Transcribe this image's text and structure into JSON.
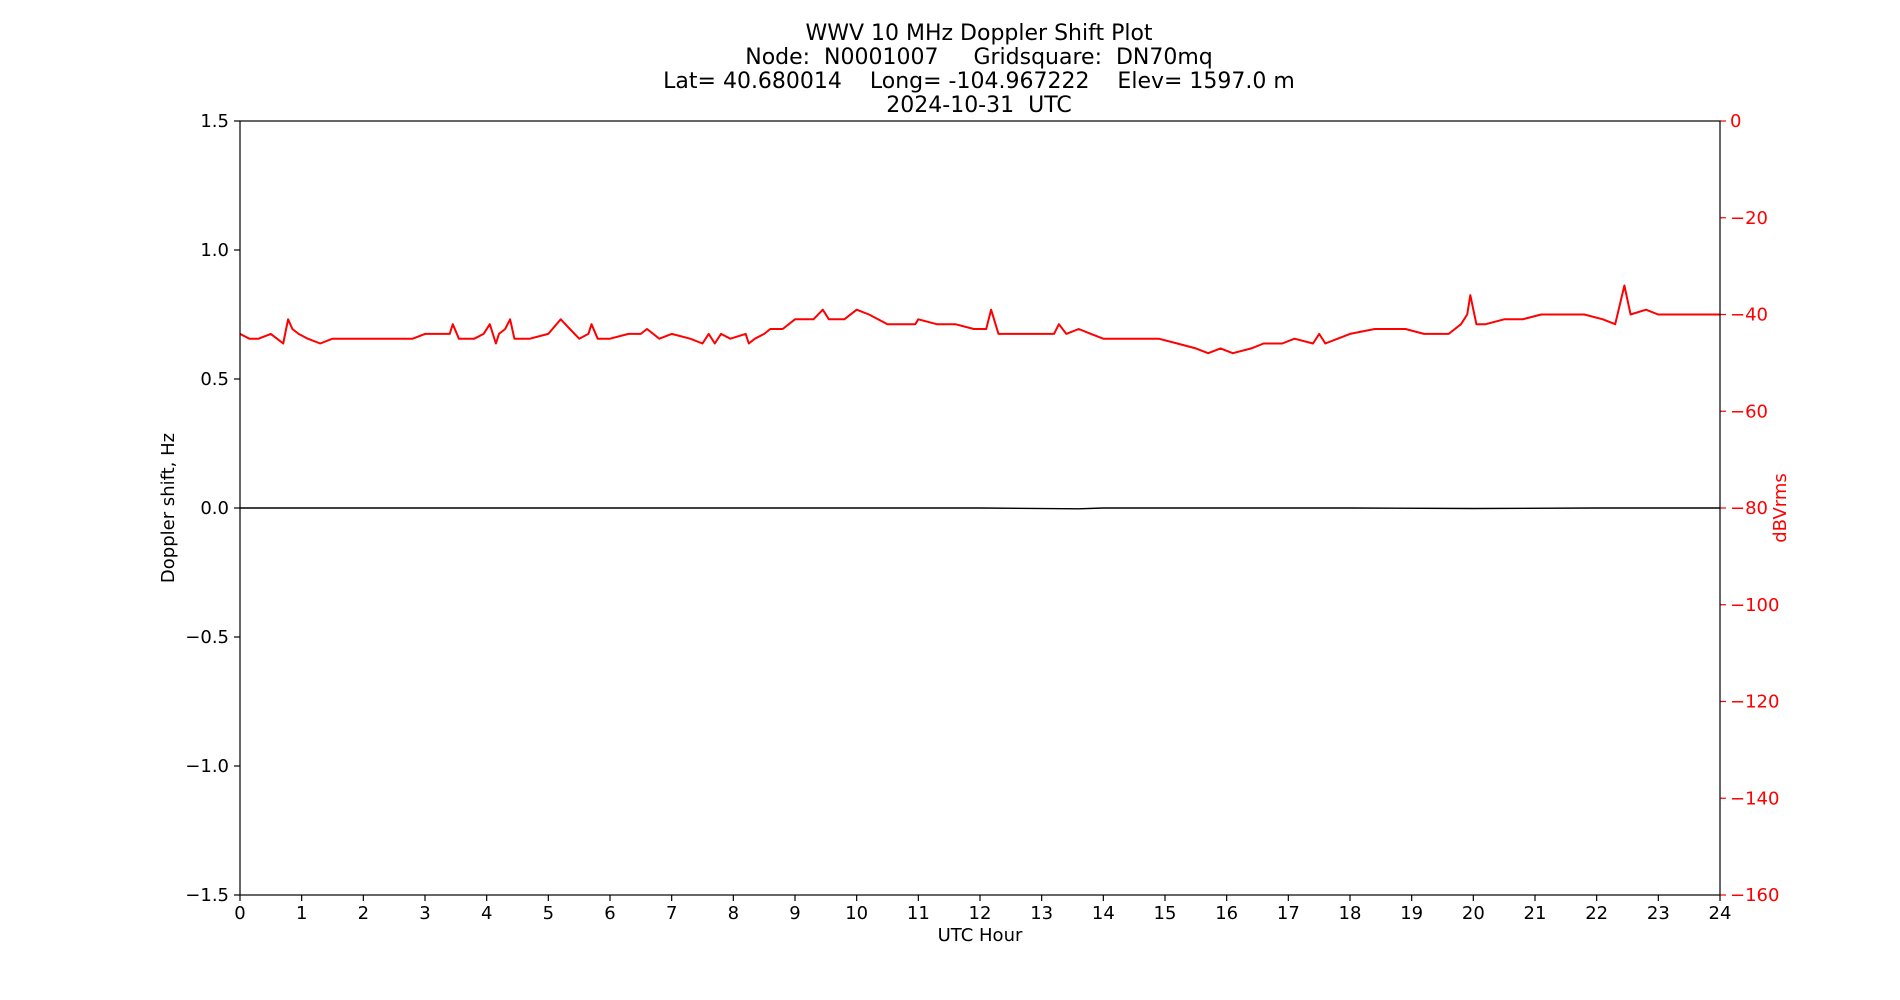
{
  "chart_data": {
    "type": "line",
    "title": "WWV 10 MHz Doppler Shift Plot",
    "subtitle_lines": [
      "Node:  N0001007     Gridsquare:  DN70mq",
      "Lat= 40.680014    Long= -104.967222    Elev= 1597.0 m",
      "2024-10-31  UTC"
    ],
    "xlabel": "UTC Hour",
    "ylabel": "Doppler shift, Hz",
    "y2label": "dBVrms",
    "xlim": [
      0,
      24
    ],
    "ylim": [
      -1.5,
      1.5
    ],
    "y2lim": [
      -160,
      0
    ],
    "xticks": [
      "0",
      "1",
      "2",
      "3",
      "4",
      "5",
      "6",
      "7",
      "8",
      "9",
      "10",
      "11",
      "12",
      "13",
      "14",
      "15",
      "16",
      "17",
      "18",
      "19",
      "20",
      "21",
      "22",
      "23",
      "24"
    ],
    "yticks": [
      "1.5",
      "1.0",
      "0.5",
      "0.0",
      "−0.5",
      "−1.0",
      "−1.5"
    ],
    "y2ticks": [
      "0",
      "−20",
      "−40",
      "−60",
      "−80",
      "−100",
      "−120",
      "−140",
      "−160"
    ],
    "grid": false,
    "colors": {
      "doppler": "#000000",
      "power": "#ff0000",
      "axis": "#000000",
      "y2axis": "#ff0000"
    },
    "series": [
      {
        "axis": "left",
        "x": [
          0,
          2,
          4,
          6,
          8,
          10,
          12,
          13.6,
          14,
          16,
          18,
          20,
          22,
          24
        ],
        "y": [
          0,
          0,
          0,
          0,
          0,
          0,
          0,
          -0.003,
          0,
          0,
          0,
          -0.002,
          0,
          0
        ]
      },
      {
        "axis": "right",
        "x": [
          0,
          0.15,
          0.3,
          0.5,
          0.6,
          0.7,
          0.78,
          0.85,
          0.95,
          1.1,
          1.3,
          1.5,
          1.8,
          2.0,
          2.2,
          2.5,
          2.8,
          3.0,
          3.2,
          3.4,
          3.45,
          3.55,
          3.8,
          3.95,
          4.05,
          4.15,
          4.2,
          4.3,
          4.38,
          4.45,
          4.7,
          5.0,
          5.2,
          5.35,
          5.5,
          5.65,
          5.7,
          5.8,
          6.0,
          6.3,
          6.5,
          6.6,
          6.8,
          7.0,
          7.3,
          7.5,
          7.6,
          7.7,
          7.8,
          7.95,
          8.2,
          8.25,
          8.35,
          8.5,
          8.6,
          8.8,
          9.0,
          9.3,
          9.45,
          9.55,
          9.8,
          10.0,
          10.2,
          10.5,
          10.8,
          10.95,
          11.0,
          11.3,
          11.6,
          11.9,
          12.1,
          12.18,
          12.3,
          12.6,
          13.0,
          13.2,
          13.28,
          13.4,
          13.6,
          13.8,
          14.0,
          14.3,
          14.6,
          14.9,
          15.2,
          15.5,
          15.7,
          15.9,
          16.1,
          16.4,
          16.6,
          16.8,
          16.9,
          17.1,
          17.4,
          17.5,
          17.6,
          17.8,
          18.0,
          18.4,
          18.6,
          18.9,
          19.2,
          19.6,
          19.8,
          19.9,
          19.95,
          20.05,
          20.2,
          20.5,
          20.8,
          21.1,
          21.5,
          21.8,
          22.1,
          22.3,
          22.45,
          22.55,
          22.8,
          23.0,
          23.4,
          23.7,
          24.0
        ],
        "y": [
          -44,
          -45,
          -45,
          -44,
          -45,
          -46,
          -41,
          -43,
          -44,
          -45,
          -46,
          -45,
          -45,
          -45,
          -45,
          -45,
          -45,
          -44,
          -44,
          -44,
          -42,
          -45,
          -45,
          -44,
          -42,
          -46,
          -44,
          -43,
          -41,
          -45,
          -45,
          -44,
          -41,
          -43,
          -45,
          -44,
          -42,
          -45,
          -45,
          -44,
          -44,
          -43,
          -45,
          -44,
          -45,
          -46,
          -44,
          -46,
          -44,
          -45,
          -44,
          -46,
          -45,
          -44,
          -43,
          -43,
          -41,
          -41,
          -39,
          -41,
          -41,
          -39,
          -40,
          -42,
          -42,
          -42,
          -41,
          -42,
          -42,
          -43,
          -43,
          -39,
          -44,
          -44,
          -44,
          -44,
          -42,
          -44,
          -43,
          -44,
          -45,
          -45,
          -45,
          -45,
          -46,
          -47,
          -48,
          -47,
          -48,
          -47,
          -46,
          -46,
          -46,
          -45,
          -46,
          -44,
          -46,
          -45,
          -44,
          -43,
          -43,
          -43,
          -44,
          -44,
          -42,
          -40,
          -36,
          -42,
          -42,
          -41,
          -41,
          -40,
          -40,
          -40,
          -41,
          -42,
          -34,
          -40,
          -39,
          -40,
          -40,
          -40,
          -40
        ]
      }
    ]
  }
}
